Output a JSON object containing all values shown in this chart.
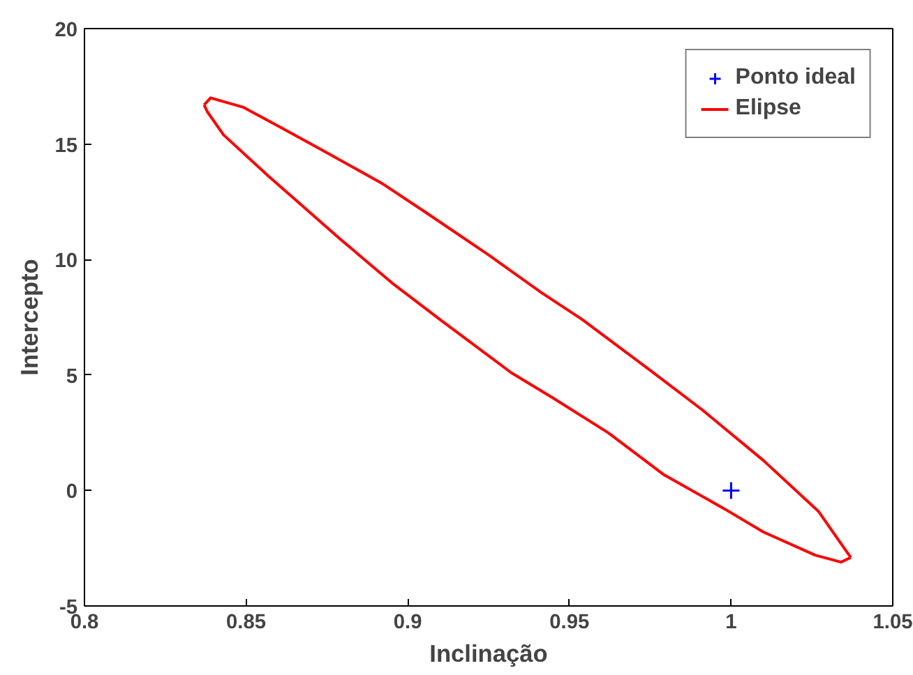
{
  "chart_data": {
    "type": "line",
    "xlabel": "Inclinação",
    "ylabel": "Intercepto",
    "xlim": [
      0.8,
      1.05
    ],
    "ylim": [
      -5,
      20
    ],
    "xticks": [
      0.8,
      0.85,
      0.9,
      0.95,
      1,
      1.05
    ],
    "yticks": [
      -5,
      0,
      5,
      10,
      15,
      20
    ],
    "grid": false,
    "legend": "top right",
    "series": [
      {
        "name": "Ponto ideal",
        "type": "scatter",
        "marker": "cross",
        "color": "#0000ff",
        "x": [
          1
        ],
        "values": [
          0
        ]
      },
      {
        "name": "Elipse",
        "color": "#ff0000",
        "x": [
          0.837,
          0.839,
          0.849,
          0.861,
          0.874,
          0.892,
          0.906,
          0.925,
          0.941,
          0.954,
          0.975,
          0.991,
          1.01,
          1.027,
          1.034,
          1.037
        ],
        "values": [
          16.7,
          17.0,
          16.6,
          15.7,
          14.7,
          13.3,
          12.0,
          10.2,
          8.6,
          7.4,
          5.2,
          3.5,
          1.3,
          -0.9,
          -2.3,
          -2.9
        ]
      },
      {
        "color": "#ff0000",
        "x": [
          0.837,
          0.838,
          0.843,
          0.857,
          0.866,
          0.879,
          0.895,
          0.91,
          0.932,
          0.945,
          0.962,
          0.979,
          0.998,
          1.01,
          1.026,
          1.034,
          1.037
        ],
        "values": [
          16.7,
          16.4,
          15.4,
          13.6,
          12.5,
          10.9,
          9.0,
          7.4,
          5.1,
          4.0,
          2.5,
          0.7,
          -0.8,
          -1.8,
          -2.8,
          -3.1,
          -2.9
        ]
      }
    ]
  }
}
